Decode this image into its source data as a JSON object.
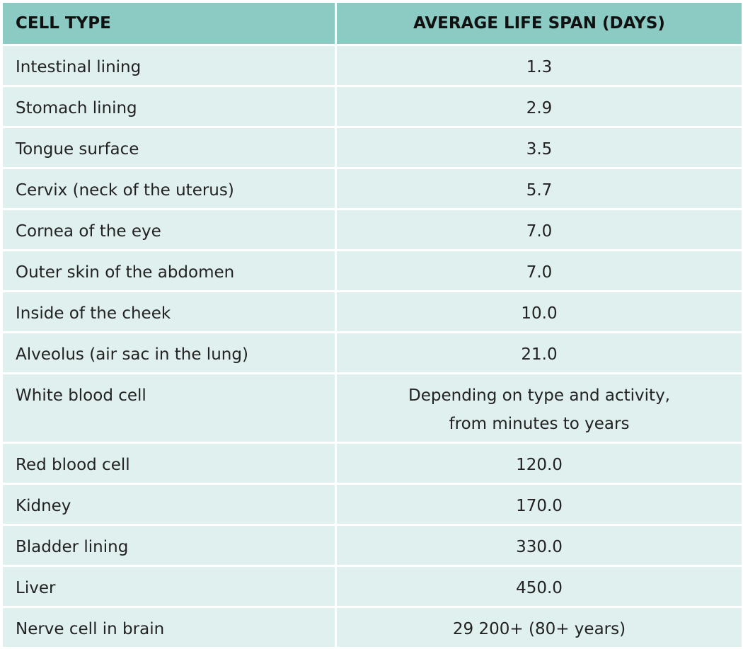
{
  "table": {
    "headers": [
      "CELL TYPE",
      "AVERAGE LIFE SPAN (DAYS)"
    ],
    "rows": [
      {
        "cell_type": "Intestinal lining",
        "life_span": "1.3"
      },
      {
        "cell_type": "Stomach lining",
        "life_span": "2.9"
      },
      {
        "cell_type": "Tongue surface",
        "life_span": "3.5"
      },
      {
        "cell_type": "Cervix (neck of the uterus)",
        "life_span": "5.7"
      },
      {
        "cell_type": "Cornea of the eye",
        "life_span": "7.0"
      },
      {
        "cell_type": "Outer skin of the abdomen",
        "life_span": "7.0"
      },
      {
        "cell_type": "Inside of the cheek",
        "life_span": "10.0"
      },
      {
        "cell_type": "Alveolus (air sac in the lung)",
        "life_span": "21.0"
      },
      {
        "cell_type": "White blood cell",
        "life_span": "Depending on type and activity, from minutes to years"
      },
      {
        "cell_type": "Red blood cell",
        "life_span": "120.0"
      },
      {
        "cell_type": "Kidney",
        "life_span": "170.0"
      },
      {
        "cell_type": "Bladder lining",
        "life_span": "330.0"
      },
      {
        "cell_type": "Liver",
        "life_span": "450.0"
      },
      {
        "cell_type": "Nerve cell in brain",
        "life_span": "29 200+ (80+ years)"
      }
    ]
  },
  "colors": {
    "header_bg": "#8ccac4",
    "row_bg": "#e0f0ef",
    "grid": "#ffffff"
  }
}
